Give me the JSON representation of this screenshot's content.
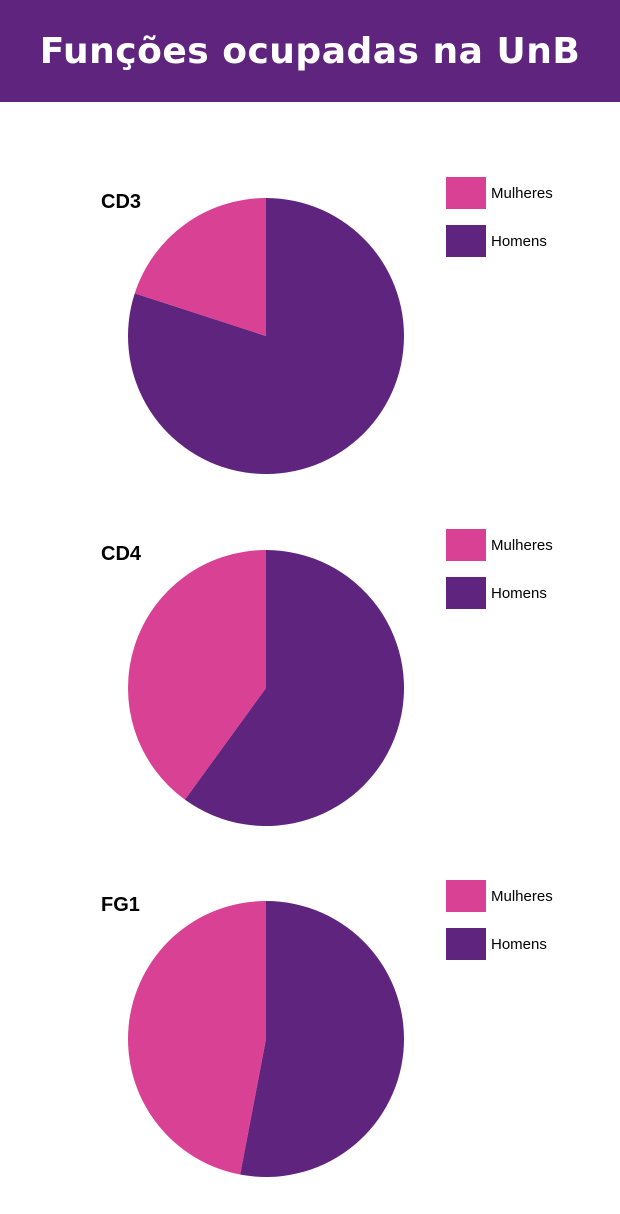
{
  "header": {
    "title": "Funções ocupadas na UnB"
  },
  "colors": {
    "header_bg": "#5f247d",
    "mulheres": "#d94194",
    "homens": "#5f247d"
  },
  "legend": {
    "mulheres": "Mulheres",
    "homens": "Homens"
  },
  "chart_data": [
    {
      "type": "pie",
      "title": "CD3",
      "labels": [
        "Mulheres",
        "Homens"
      ],
      "values": [
        20,
        80
      ],
      "legend_position": "right"
    },
    {
      "type": "pie",
      "title": "CD4",
      "labels": [
        "Mulheres",
        "Homens"
      ],
      "values": [
        40,
        60
      ],
      "legend_position": "right"
    },
    {
      "type": "pie",
      "title": "FG1",
      "labels": [
        "Mulheres",
        "Homens"
      ],
      "values": [
        47,
        53
      ],
      "legend_position": "right"
    }
  ]
}
